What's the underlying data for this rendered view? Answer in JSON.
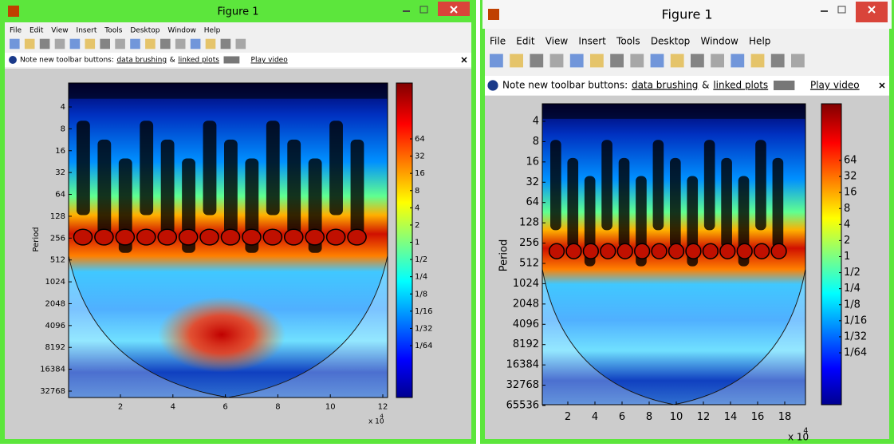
{
  "windows": [
    {
      "title": "Figure 1",
      "menu": [
        "File",
        "Edit",
        "View",
        "Insert",
        "Tools",
        "Desktop",
        "Window",
        "Help"
      ],
      "note": {
        "text": "Note new toolbar buttons:",
        "link1": "data brushing",
        "amp": "&",
        "link2": "linked plots",
        "link3": "Play video"
      },
      "ylabel": "Period",
      "yticks": [
        "4",
        "8",
        "16",
        "32",
        "64",
        "128",
        "256",
        "512",
        "1024",
        "2048",
        "4096",
        "8192",
        "16384",
        "32768"
      ],
      "xticks": [
        "2",
        "4",
        "6",
        "8",
        "10",
        "12"
      ],
      "x_multiplier": "x 10",
      "x_exponent": "4",
      "colorbar_ticks": [
        "64",
        "32",
        "16",
        "8",
        "4",
        "2",
        "1",
        "1/2",
        "1/4",
        "1/8",
        "1/16",
        "1/32",
        "1/64"
      ]
    },
    {
      "title": "Figure 1",
      "menu": [
        "File",
        "Edit",
        "View",
        "Insert",
        "Tools",
        "Desktop",
        "Window",
        "Help"
      ],
      "note": {
        "text": "Note new toolbar buttons:",
        "link1": "data brushing",
        "amp": "&",
        "link2": "linked plots",
        "link3": "Play video"
      },
      "ylabel": "Period",
      "yticks": [
        "4",
        "8",
        "16",
        "32",
        "64",
        "128",
        "256",
        "512",
        "1024",
        "2048",
        "4096",
        "8192",
        "16384",
        "32768",
        "65536"
      ],
      "xticks": [
        "2",
        "4",
        "6",
        "8",
        "10",
        "12",
        "14",
        "16",
        "18"
      ],
      "x_multiplier": "x 10",
      "x_exponent": "4",
      "colorbar_ticks": [
        "64",
        "32",
        "16",
        "8",
        "4",
        "2",
        "1",
        "1/2",
        "1/4",
        "1/8",
        "1/16",
        "1/32",
        "1/64"
      ]
    }
  ]
}
